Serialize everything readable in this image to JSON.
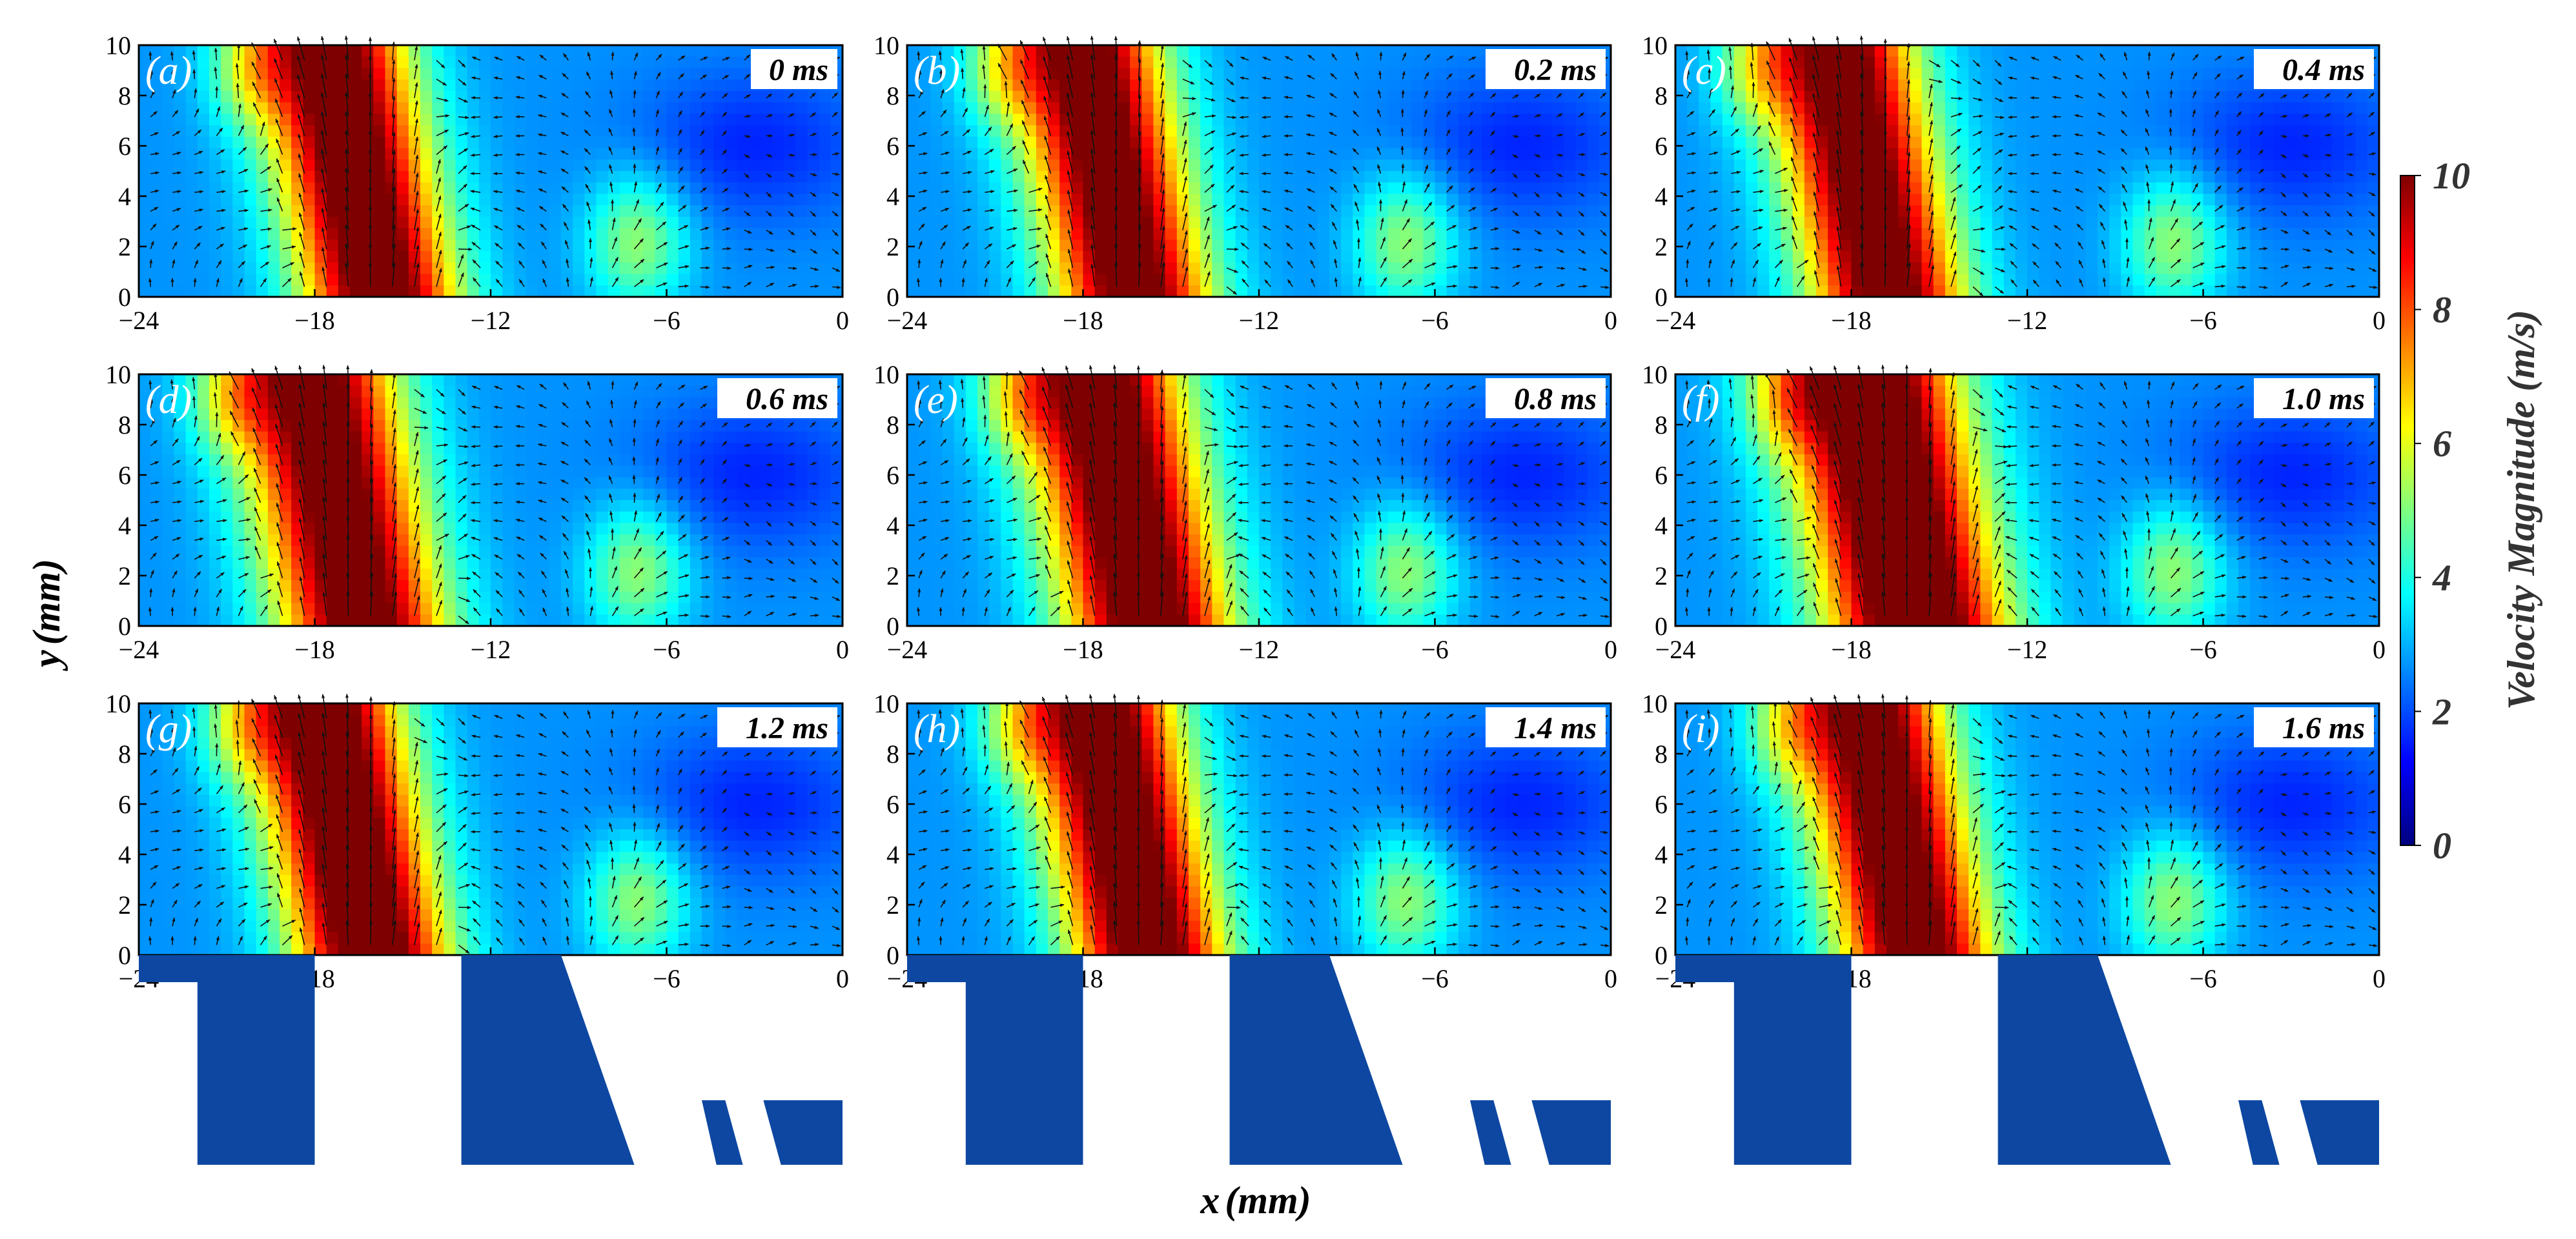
{
  "chart_data": {
    "type": "heatmap",
    "description_kind": "velocity field panels with vector arrows",
    "xlabel_var": "x",
    "xlabel_unit": "(mm)",
    "ylabel_var": "y",
    "ylabel_unit": "(mm)",
    "xlim": [
      -24,
      0
    ],
    "ylim": [
      0,
      10
    ],
    "x_ticks": [
      "-24",
      "-18",
      "-12",
      "-6",
      "0"
    ],
    "y_ticks": [
      "0",
      "2",
      "4",
      "6",
      "8",
      "10"
    ],
    "colorbar": {
      "label": "Velocity Magnitude (m/s)",
      "range": [
        0,
        10
      ],
      "ticks": [
        "0",
        "2",
        "4",
        "6",
        "8",
        "10"
      ],
      "colormap": [
        "#00007f",
        "#0000ff",
        "#007fff",
        "#00ffff",
        "#7fff7f",
        "#ffff00",
        "#ff7f00",
        "#ff0000",
        "#7f0000"
      ]
    },
    "panels": [
      {
        "label": "(a)",
        "time": "0 ms"
      },
      {
        "label": "(b)",
        "time": "0.2 ms"
      },
      {
        "label": "(c)",
        "time": "0.4 ms"
      },
      {
        "label": "(d)",
        "time": "0.6 ms"
      },
      {
        "label": "(e)",
        "time": "0.8 ms"
      },
      {
        "label": "(f)",
        "time": "1.0 ms"
      },
      {
        "label": "(g)",
        "time": "1.2 ms"
      },
      {
        "label": "(h)",
        "time": "1.4 ms"
      },
      {
        "label": "(i)",
        "time": "1.6 ms"
      }
    ],
    "jets": [
      {
        "center": -16.0,
        "width": 2.6,
        "peak": 8.6
      },
      {
        "center": -16.5,
        "width": 2.6,
        "peak": 8.4
      },
      {
        "center": -17.0,
        "width": 2.6,
        "peak": 8.4
      },
      {
        "center": -16.6,
        "width": 2.8,
        "peak": 8.4
      },
      {
        "center": -16.0,
        "width": 2.8,
        "peak": 8.7
      },
      {
        "center": -16.0,
        "width": 3.0,
        "peak": 9.4
      },
      {
        "center": -16.3,
        "width": 2.6,
        "peak": 8.9
      },
      {
        "center": -16.0,
        "width": 2.6,
        "peak": 8.7
      },
      {
        "center": -16.0,
        "width": 2.6,
        "peak": 8.5
      }
    ],
    "geometry_color": "#0d47a1"
  }
}
